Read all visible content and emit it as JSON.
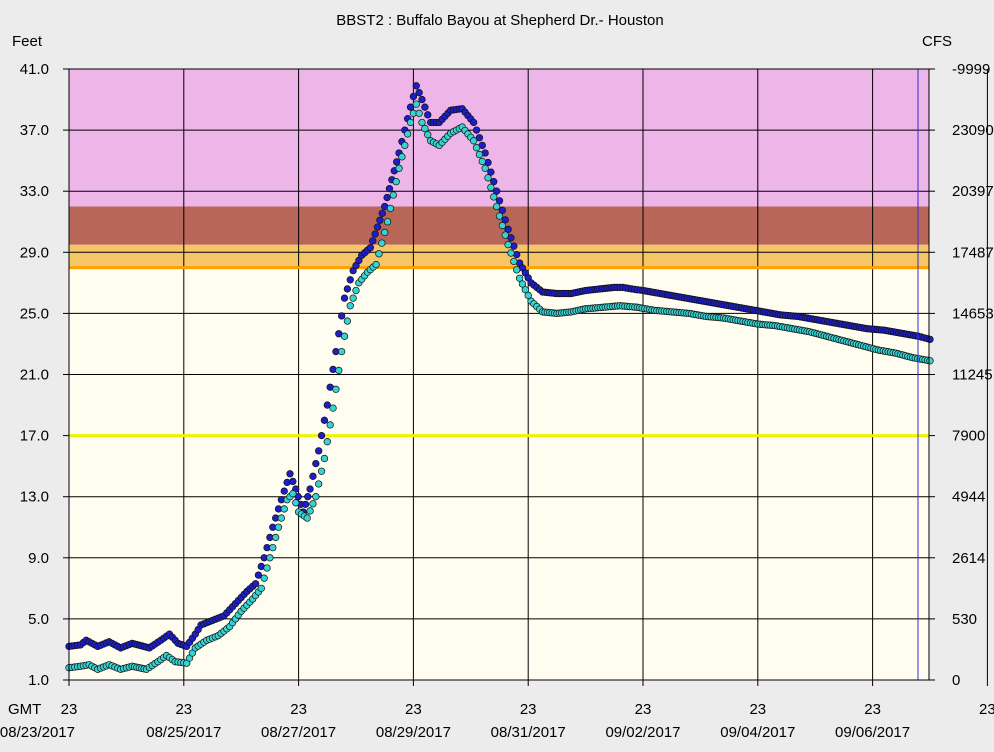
{
  "chart_data": {
    "type": "scatter",
    "title": "BBST2  :  Buffalo Bayou at Shepherd Dr.- Houston",
    "left_axis_label": "Feet",
    "right_axis_label": "CFS",
    "x_corner_label": "GMT",
    "ylim": [
      1.0,
      41.0
    ],
    "y_ticks": [
      "1.0",
      "5.0",
      "9.0",
      "13.0",
      "17.0",
      "21.0",
      "25.0",
      "29.0",
      "33.0",
      "37.0",
      "41.0"
    ],
    "right_ticks": [
      "0",
      "530",
      "2614",
      "4944",
      "7900",
      "11245",
      "14653",
      "17487",
      "20397",
      "23090",
      "-9999"
    ],
    "x_hour_labels": [
      "23",
      "23",
      "23",
      "23",
      "23",
      "23",
      "23",
      "23",
      "23"
    ],
    "x_date_labels": [
      "08/23/2017",
      "08/25/2017",
      "08/27/2017",
      "08/29/2017",
      "08/31/2017",
      "09/02/2017",
      "09/04/2017",
      "09/06/2017"
    ],
    "xlim_days": [
      "08/23/2017",
      "09/07/2017"
    ],
    "grid": true,
    "flood_bands": [
      {
        "from": 28.0,
        "to": 29.5,
        "color": "#f5c568"
      },
      {
        "from": 29.5,
        "to": 32.0,
        "color": "#b76658"
      },
      {
        "from": 32.0,
        "to": 41.0,
        "color": "#edb5e8"
      }
    ],
    "action_stage_line": {
      "value": 28.0,
      "color": "#ffa000"
    },
    "reference_line": {
      "value": 17.0,
      "color": "#f2f200"
    },
    "plot_background": "#fffdf0",
    "series": [
      {
        "color": "#1e1ec8",
        "points": [
          [
            0,
            3.2
          ],
          [
            0.2,
            3.3
          ],
          [
            0.3,
            3.6
          ],
          [
            0.5,
            3.2
          ],
          [
            0.7,
            3.5
          ],
          [
            0.9,
            3.1
          ],
          [
            1.1,
            3.4
          ],
          [
            1.4,
            3.1
          ],
          [
            1.6,
            3.6
          ],
          [
            1.75,
            4.0
          ],
          [
            1.9,
            3.4
          ],
          [
            2.05,
            3.2
          ],
          [
            2.2,
            4.0
          ],
          [
            2.3,
            4.6
          ],
          [
            2.5,
            4.9
          ],
          [
            2.7,
            5.2
          ],
          [
            2.9,
            6.0
          ],
          [
            3.1,
            6.8
          ],
          [
            3.25,
            7.3
          ],
          [
            3.4,
            9.0
          ],
          [
            3.55,
            11.0
          ],
          [
            3.7,
            12.8
          ],
          [
            3.85,
            14.5
          ],
          [
            3.95,
            13.5
          ],
          [
            4.08,
            12.0
          ],
          [
            4.2,
            13.5
          ],
          [
            4.35,
            16.0
          ],
          [
            4.5,
            19.0
          ],
          [
            4.65,
            22.5
          ],
          [
            4.8,
            26.0
          ],
          [
            4.95,
            27.8
          ],
          [
            5.1,
            28.8
          ],
          [
            5.25,
            29.3
          ],
          [
            5.5,
            32.0
          ],
          [
            5.75,
            35.5
          ],
          [
            5.95,
            38.5
          ],
          [
            6.05,
            39.9
          ],
          [
            6.15,
            39.0
          ],
          [
            6.3,
            37.5
          ],
          [
            6.45,
            37.5
          ],
          [
            6.65,
            38.3
          ],
          [
            6.85,
            38.4
          ],
          [
            7.05,
            37.5
          ],
          [
            7.25,
            35.5
          ],
          [
            7.45,
            33.0
          ],
          [
            7.65,
            30.5
          ],
          [
            7.85,
            28.3
          ],
          [
            8.05,
            27.0
          ],
          [
            8.25,
            26.4
          ],
          [
            8.5,
            26.3
          ],
          [
            8.75,
            26.3
          ],
          [
            9.0,
            26.5
          ],
          [
            9.25,
            26.6
          ],
          [
            9.5,
            26.7
          ],
          [
            9.65,
            26.7
          ],
          [
            9.8,
            26.6
          ],
          [
            10.0,
            26.5
          ],
          [
            10.3,
            26.3
          ],
          [
            10.6,
            26.1
          ],
          [
            10.9,
            25.9
          ],
          [
            11.2,
            25.7
          ],
          [
            11.5,
            25.5
          ],
          [
            11.8,
            25.3
          ],
          [
            12.1,
            25.1
          ],
          [
            12.4,
            24.9
          ],
          [
            12.7,
            24.8
          ],
          [
            13.0,
            24.6
          ],
          [
            13.3,
            24.4
          ],
          [
            13.6,
            24.2
          ],
          [
            13.9,
            24.0
          ],
          [
            14.2,
            23.9
          ],
          [
            14.5,
            23.7
          ],
          [
            14.8,
            23.5
          ],
          [
            15.0,
            23.3
          ]
        ]
      },
      {
        "color": "#37d2d2",
        "points": [
          [
            0,
            1.8
          ],
          [
            0.2,
            1.9
          ],
          [
            0.35,
            2.0
          ],
          [
            0.5,
            1.7
          ],
          [
            0.7,
            2.0
          ],
          [
            0.9,
            1.7
          ],
          [
            1.1,
            1.9
          ],
          [
            1.35,
            1.7
          ],
          [
            1.55,
            2.2
          ],
          [
            1.7,
            2.6
          ],
          [
            1.85,
            2.2
          ],
          [
            2.05,
            2.1
          ],
          [
            2.2,
            3.1
          ],
          [
            2.4,
            3.6
          ],
          [
            2.6,
            3.9
          ],
          [
            2.8,
            4.5
          ],
          [
            3.0,
            5.5
          ],
          [
            3.2,
            6.3
          ],
          [
            3.35,
            7.0
          ],
          [
            3.5,
            9.0
          ],
          [
            3.65,
            11.0
          ],
          [
            3.8,
            12.8
          ],
          [
            3.9,
            13.2
          ],
          [
            4.0,
            12.0
          ],
          [
            4.15,
            11.6
          ],
          [
            4.3,
            13.0
          ],
          [
            4.45,
            15.5
          ],
          [
            4.6,
            18.8
          ],
          [
            4.75,
            22.5
          ],
          [
            4.9,
            25.5
          ],
          [
            5.05,
            27.0
          ],
          [
            5.2,
            27.7
          ],
          [
            5.35,
            28.2
          ],
          [
            5.55,
            31.0
          ],
          [
            5.75,
            34.5
          ],
          [
            5.95,
            37.5
          ],
          [
            6.05,
            38.7
          ],
          [
            6.15,
            37.5
          ],
          [
            6.3,
            36.3
          ],
          [
            6.45,
            36.0
          ],
          [
            6.65,
            36.8
          ],
          [
            6.85,
            37.2
          ],
          [
            7.05,
            36.3
          ],
          [
            7.25,
            34.5
          ],
          [
            7.45,
            32.0
          ],
          [
            7.65,
            29.5
          ],
          [
            7.85,
            27.3
          ],
          [
            8.05,
            25.8
          ],
          [
            8.25,
            25.1
          ],
          [
            8.5,
            25.0
          ],
          [
            8.75,
            25.1
          ],
          [
            9.0,
            25.3
          ],
          [
            9.3,
            25.4
          ],
          [
            9.6,
            25.5
          ],
          [
            9.9,
            25.4
          ],
          [
            10.2,
            25.2
          ],
          [
            10.5,
            25.1
          ],
          [
            10.8,
            25.0
          ],
          [
            11.1,
            24.8
          ],
          [
            11.4,
            24.7
          ],
          [
            11.7,
            24.5
          ],
          [
            12.0,
            24.3
          ],
          [
            12.3,
            24.2
          ],
          [
            12.6,
            24.0
          ],
          [
            12.9,
            23.8
          ],
          [
            13.2,
            23.5
          ],
          [
            13.5,
            23.2
          ],
          [
            13.8,
            22.9
          ],
          [
            14.1,
            22.6
          ],
          [
            14.4,
            22.4
          ],
          [
            14.7,
            22.1
          ],
          [
            15.0,
            21.9
          ]
        ]
      }
    ]
  }
}
